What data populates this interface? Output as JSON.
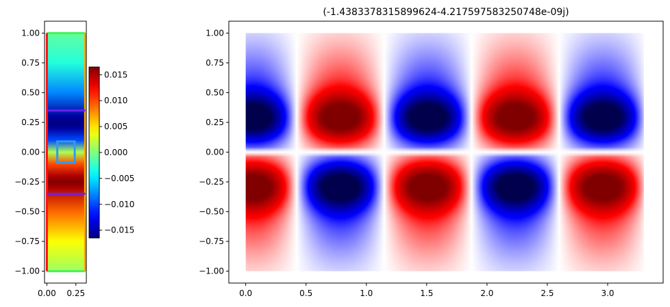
{
  "chart_data": [
    {
      "type": "heatmap",
      "title": "",
      "xlabel": "",
      "ylabel": "",
      "xlim": [
        -0.02,
        0.34
      ],
      "ylim": [
        -1.1,
        1.1
      ],
      "xticks": [
        {
          "v": 0.0,
          "label": "0.00"
        },
        {
          "v": 0.25,
          "label": "0.25"
        }
      ],
      "yticks": [
        {
          "v": 1.0,
          "label": "1.00"
        },
        {
          "v": 0.75,
          "label": "0.75"
        },
        {
          "v": 0.5,
          "label": "0.50"
        },
        {
          "v": 0.25,
          "label": "0.25"
        },
        {
          "v": 0.0,
          "label": "0.00"
        },
        {
          "v": -0.25,
          "label": "−0.25"
        },
        {
          "v": -0.5,
          "label": "−0.50"
        },
        {
          "v": -0.75,
          "label": "−0.75"
        },
        {
          "v": -1.0,
          "label": "−1.00"
        }
      ],
      "colormap": "jet",
      "field_profile": {
        "y": [
          1.0,
          0.75,
          0.5,
          0.3,
          0.25,
          0.2,
          0.1,
          0.0,
          -0.1,
          -0.2,
          -0.25,
          -0.3,
          -0.5,
          -0.75,
          -1.0
        ],
        "value": [
          -0.001,
          -0.003,
          -0.008,
          -0.0155,
          -0.0165,
          -0.0155,
          -0.01,
          0.0015,
          0.01,
          0.015,
          0.0165,
          0.015,
          0.009,
          0.004,
          0.001
        ]
      },
      "colorbar": {
        "range": [
          -0.0165,
          0.0165
        ],
        "ticks": [
          {
            "v": 0.015,
            "label": "0.015"
          },
          {
            "v": 0.01,
            "label": "0.010"
          },
          {
            "v": 0.005,
            "label": "0.005"
          },
          {
            "v": 0.0,
            "label": "0.000"
          },
          {
            "v": -0.005,
            "label": "−0.005"
          },
          {
            "v": -0.01,
            "label": "−0.010"
          },
          {
            "v": -0.015,
            "label": "−0.015"
          }
        ]
      },
      "overlays": [
        {
          "name": "top-boundary",
          "kind": "hline",
          "y": 1.0,
          "x": [
            0.0,
            0.33
          ],
          "color": "#46f256"
        },
        {
          "name": "bottom-boundary",
          "kind": "hline",
          "y": -1.0,
          "x": [
            0.0,
            0.33
          ],
          "color": "#46f256"
        },
        {
          "name": "left-boundary",
          "kind": "vline",
          "x": 0.0,
          "y": [
            -1.0,
            1.0
          ],
          "color": "#ff1010"
        },
        {
          "name": "right-boundary",
          "kind": "vline",
          "x": 0.33,
          "y": [
            -1.0,
            1.0
          ],
          "color": "#ffa500"
        },
        {
          "name": "upper-interface",
          "kind": "hline",
          "y": 0.35,
          "x": [
            0.0,
            0.33
          ],
          "color": "#6a1ff0"
        },
        {
          "name": "lower-interface",
          "kind": "hline",
          "y": -0.35,
          "x": [
            0.0,
            0.33
          ],
          "color": "#6a1ff0"
        },
        {
          "name": "center-box",
          "kind": "rect",
          "x": [
            0.09,
            0.24
          ],
          "y": [
            -0.09,
            0.09
          ],
          "color": "#2d9bf0"
        }
      ]
    },
    {
      "type": "heatmap",
      "title": "(-1.4383378315899624-4.217597583250748e-09j)",
      "xlabel": "",
      "ylabel": "",
      "xlim": [
        -0.14,
        3.46
      ],
      "ylim": [
        -1.1,
        1.1
      ],
      "xticks": [
        {
          "v": 0.0,
          "label": "0.0"
        },
        {
          "v": 0.5,
          "label": "0.5"
        },
        {
          "v": 1.0,
          "label": "1.0"
        },
        {
          "v": 1.5,
          "label": "1.5"
        },
        {
          "v": 2.0,
          "label": "2.0"
        },
        {
          "v": 2.5,
          "label": "2.5"
        },
        {
          "v": 3.0,
          "label": "3.0"
        }
      ],
      "yticks": [
        {
          "v": 1.0,
          "label": "1.00"
        },
        {
          "v": 0.75,
          "label": "0.75"
        },
        {
          "v": 0.5,
          "label": "0.50"
        },
        {
          "v": 0.25,
          "label": "0.25"
        },
        {
          "v": 0.0,
          "label": "0.00"
        },
        {
          "v": -0.25,
          "label": "−0.25"
        },
        {
          "v": -0.5,
          "label": "−0.50"
        },
        {
          "v": -0.75,
          "label": "−0.75"
        },
        {
          "v": -1.0,
          "label": "−1.00"
        }
      ],
      "colormap": "seismic",
      "period": 1.45,
      "phase": 0.06,
      "domain_x": [
        0.0,
        3.3
      ],
      "domain_y": [
        -1.0,
        1.0
      ]
    }
  ]
}
